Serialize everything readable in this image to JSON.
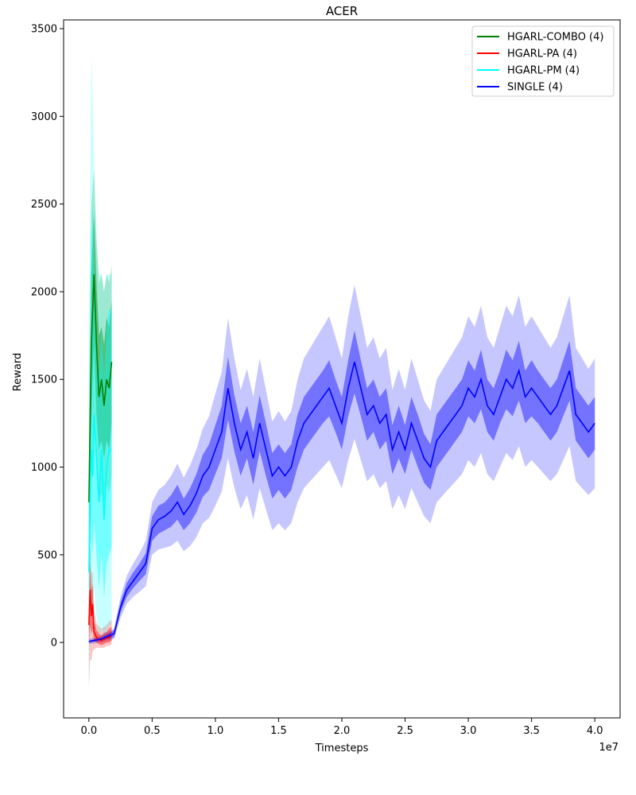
{
  "chart_data": {
    "type": "line",
    "title": "ACER",
    "xlabel": "Timesteps",
    "ylabel": "Reward",
    "x_offset_text": "1e7",
    "xlim": [
      -0.2,
      4.2
    ],
    "ylim": [
      -430,
      3550
    ],
    "x_ticks": [
      0.0,
      0.5,
      1.0,
      1.5,
      2.0,
      2.5,
      3.0,
      3.5,
      4.0
    ],
    "x_tick_labels": [
      "0.0",
      "0.5",
      "1.0",
      "1.5",
      "2.0",
      "2.5",
      "3.0",
      "3.5",
      "4.0"
    ],
    "y_ticks": [
      0,
      500,
      1000,
      1500,
      2000,
      2500,
      3000,
      3500
    ],
    "y_tick_labels": [
      "0",
      "500",
      "1000",
      "1500",
      "2000",
      "2500",
      "3000",
      "3500"
    ],
    "grid": false,
    "legend_position": "top-right",
    "series": [
      {
        "name": "HGARL-COMBO (4)",
        "color": "#008000",
        "x": [
          0.0,
          0.02,
          0.04,
          0.06,
          0.08,
          0.1,
          0.12,
          0.14,
          0.16,
          0.18
        ],
        "y": [
          800,
          1700,
          2100,
          1700,
          1400,
          1500,
          1350,
          1500,
          1450,
          1600
        ],
        "band_inner": [
          [
            600,
            1000
          ],
          [
            1300,
            2100
          ],
          [
            1700,
            2450
          ],
          [
            1300,
            2050
          ],
          [
            1100,
            1750
          ],
          [
            1150,
            1800
          ],
          [
            1050,
            1700
          ],
          [
            1150,
            1850
          ],
          [
            1100,
            1800
          ],
          [
            1250,
            1950
          ]
        ],
        "band_outer": [
          [
            300,
            1300
          ],
          [
            900,
            2500
          ],
          [
            1300,
            2700
          ],
          [
            1000,
            2300
          ],
          [
            800,
            2050
          ],
          [
            850,
            2100
          ],
          [
            800,
            2000
          ],
          [
            900,
            2100
          ],
          [
            850,
            2050
          ],
          [
            950,
            2150
          ]
        ]
      },
      {
        "name": "HGARL-PA (4)",
        "color": "#ff0000",
        "x": [
          0.0,
          0.01,
          0.02,
          0.03,
          0.04,
          0.06,
          0.08,
          0.1,
          0.12,
          0.14,
          0.16,
          0.18
        ],
        "y": [
          100,
          300,
          150,
          220,
          60,
          30,
          15,
          10,
          20,
          25,
          30,
          40
        ],
        "band_inner": [
          [
            0,
            250
          ],
          [
            100,
            450
          ],
          [
            50,
            300
          ],
          [
            80,
            330
          ],
          [
            10,
            120
          ],
          [
            0,
            70
          ],
          [
            -10,
            50
          ],
          [
            -15,
            40
          ],
          [
            -10,
            55
          ],
          [
            0,
            60
          ],
          [
            0,
            80
          ],
          [
            10,
            90
          ]
        ],
        "band_outer": [
          [
            -250,
            450
          ],
          [
            -100,
            550
          ],
          [
            -100,
            400
          ],
          [
            -50,
            400
          ],
          [
            -40,
            180
          ],
          [
            -30,
            110
          ],
          [
            -30,
            90
          ],
          [
            -30,
            80
          ],
          [
            -30,
            90
          ],
          [
            -20,
            100
          ],
          [
            -20,
            120
          ],
          [
            -10,
            130
          ]
        ]
      },
      {
        "name": "HGARL-PM (4)",
        "color": "#00ffff",
        "x": [
          0.0,
          0.01,
          0.02,
          0.03,
          0.04,
          0.06,
          0.08,
          0.1,
          0.12,
          0.14,
          0.16,
          0.18
        ],
        "y": [
          400,
          800,
          1100,
          950,
          1300,
          1050,
          800,
          1100,
          700,
          1000,
          1100,
          1100
        ],
        "band_inner": [
          [
            100,
            900
          ],
          [
            400,
            1600
          ],
          [
            600,
            2300
          ],
          [
            500,
            2500
          ],
          [
            700,
            2200
          ],
          [
            500,
            1700
          ],
          [
            300,
            1500
          ],
          [
            500,
            1800
          ],
          [
            250,
            1500
          ],
          [
            450,
            1800
          ],
          [
            500,
            1900
          ],
          [
            550,
            1900
          ]
        ],
        "band_outer": [
          [
            -250,
            1600
          ],
          [
            0,
            2600
          ],
          [
            200,
            3350
          ],
          [
            150,
            3100
          ],
          [
            300,
            2700
          ],
          [
            150,
            2300
          ],
          [
            0,
            2100
          ],
          [
            100,
            2100
          ],
          [
            0,
            2000
          ],
          [
            50,
            2100
          ],
          [
            100,
            2100
          ],
          [
            100,
            2100
          ]
        ]
      },
      {
        "name": "SINGLE (4)",
        "color": "#0000ff",
        "x": [
          0.0,
          0.1,
          0.2,
          0.25,
          0.3,
          0.35,
          0.4,
          0.45,
          0.5,
          0.55,
          0.6,
          0.65,
          0.7,
          0.75,
          0.8,
          0.85,
          0.9,
          0.95,
          1.0,
          1.05,
          1.1,
          1.15,
          1.2,
          1.25,
          1.3,
          1.35,
          1.4,
          1.45,
          1.5,
          1.55,
          1.6,
          1.65,
          1.7,
          1.75,
          1.8,
          1.85,
          1.9,
          1.95,
          2.0,
          2.05,
          2.1,
          2.15,
          2.2,
          2.25,
          2.3,
          2.35,
          2.4,
          2.45,
          2.5,
          2.55,
          2.6,
          2.65,
          2.7,
          2.75,
          2.8,
          2.85,
          2.9,
          2.95,
          3.0,
          3.05,
          3.1,
          3.15,
          3.2,
          3.25,
          3.3,
          3.35,
          3.4,
          3.45,
          3.5,
          3.55,
          3.6,
          3.65,
          3.7,
          3.75,
          3.8,
          3.85,
          3.9,
          3.95,
          4.0
        ],
        "y": [
          5,
          20,
          50,
          200,
          300,
          350,
          400,
          450,
          650,
          700,
          720,
          750,
          800,
          730,
          780,
          850,
          950,
          1000,
          1100,
          1200,
          1450,
          1250,
          1100,
          1200,
          1050,
          1250,
          1100,
          950,
          1000,
          950,
          1000,
          1150,
          1250,
          1300,
          1350,
          1400,
          1450,
          1350,
          1250,
          1450,
          1600,
          1450,
          1300,
          1350,
          1250,
          1300,
          1100,
          1200,
          1100,
          1250,
          1150,
          1050,
          1000,
          1150,
          1200,
          1250,
          1300,
          1350,
          1450,
          1400,
          1500,
          1350,
          1300,
          1400,
          1500,
          1450,
          1550,
          1400,
          1450,
          1400,
          1350,
          1300,
          1350,
          1450,
          1550,
          1300,
          1250,
          1200,
          1250
        ],
        "band_inner": [
          [
            0,
            10
          ],
          [
            10,
            30
          ],
          [
            30,
            70
          ],
          [
            170,
            230
          ],
          [
            260,
            340
          ],
          [
            310,
            400
          ],
          [
            350,
            450
          ],
          [
            390,
            510
          ],
          [
            580,
            720
          ],
          [
            620,
            780
          ],
          [
            640,
            800
          ],
          [
            660,
            840
          ],
          [
            700,
            900
          ],
          [
            640,
            820
          ],
          [
            680,
            880
          ],
          [
            740,
            960
          ],
          [
            830,
            1070
          ],
          [
            870,
            1130
          ],
          [
            960,
            1240
          ],
          [
            1050,
            1350
          ],
          [
            1270,
            1630
          ],
          [
            1090,
            1410
          ],
          [
            950,
            1250
          ],
          [
            1050,
            1350
          ],
          [
            900,
            1200
          ],
          [
            1090,
            1410
          ],
          [
            950,
            1250
          ],
          [
            820,
            1080
          ],
          [
            870,
            1130
          ],
          [
            820,
            1080
          ],
          [
            870,
            1130
          ],
          [
            1000,
            1300
          ],
          [
            1100,
            1400
          ],
          [
            1150,
            1450
          ],
          [
            1200,
            1500
          ],
          [
            1250,
            1550
          ],
          [
            1290,
            1610
          ],
          [
            1200,
            1500
          ],
          [
            1100,
            1400
          ],
          [
            1290,
            1610
          ],
          [
            1420,
            1780
          ],
          [
            1290,
            1610
          ],
          [
            1150,
            1450
          ],
          [
            1200,
            1500
          ],
          [
            1100,
            1400
          ],
          [
            1150,
            1450
          ],
          [
            960,
            1240
          ],
          [
            1050,
            1350
          ],
          [
            960,
            1240
          ],
          [
            1100,
            1400
          ],
          [
            1000,
            1300
          ],
          [
            910,
            1190
          ],
          [
            870,
            1130
          ],
          [
            1000,
            1300
          ],
          [
            1050,
            1350
          ],
          [
            1100,
            1400
          ],
          [
            1150,
            1450
          ],
          [
            1200,
            1500
          ],
          [
            1290,
            1610
          ],
          [
            1250,
            1550
          ],
          [
            1330,
            1670
          ],
          [
            1200,
            1500
          ],
          [
            1150,
            1450
          ],
          [
            1250,
            1550
          ],
          [
            1330,
            1670
          ],
          [
            1290,
            1610
          ],
          [
            1380,
            1720
          ],
          [
            1250,
            1550
          ],
          [
            1290,
            1610
          ],
          [
            1250,
            1550
          ],
          [
            1200,
            1500
          ],
          [
            1150,
            1450
          ],
          [
            1200,
            1500
          ],
          [
            1290,
            1610
          ],
          [
            1380,
            1720
          ],
          [
            1150,
            1450
          ],
          [
            1100,
            1400
          ],
          [
            1050,
            1350
          ],
          [
            1100,
            1400
          ]
        ],
        "band_outer": [
          [
            -10,
            20
          ],
          [
            0,
            40
          ],
          [
            20,
            80
          ],
          [
            140,
            260
          ],
          [
            220,
            380
          ],
          [
            260,
            450
          ],
          [
            290,
            510
          ],
          [
            320,
            580
          ],
          [
            500,
            800
          ],
          [
            530,
            870
          ],
          [
            540,
            900
          ],
          [
            550,
            950
          ],
          [
            580,
            1020
          ],
          [
            520,
            940
          ],
          [
            550,
            1010
          ],
          [
            600,
            1100
          ],
          [
            680,
            1220
          ],
          [
            710,
            1290
          ],
          [
            780,
            1420
          ],
          [
            860,
            1540
          ],
          [
            1050,
            1850
          ],
          [
            880,
            1620
          ],
          [
            760,
            1440
          ],
          [
            840,
            1560
          ],
          [
            700,
            1400
          ],
          [
            880,
            1620
          ],
          [
            760,
            1440
          ],
          [
            640,
            1260
          ],
          [
            680,
            1320
          ],
          [
            640,
            1260
          ],
          [
            680,
            1320
          ],
          [
            800,
            1500
          ],
          [
            880,
            1620
          ],
          [
            920,
            1680
          ],
          [
            960,
            1740
          ],
          [
            1000,
            1800
          ],
          [
            1040,
            1860
          ],
          [
            960,
            1740
          ],
          [
            880,
            1620
          ],
          [
            1040,
            1860
          ],
          [
            1160,
            2040
          ],
          [
            1040,
            1860
          ],
          [
            920,
            1680
          ],
          [
            960,
            1740
          ],
          [
            880,
            1620
          ],
          [
            920,
            1680
          ],
          [
            760,
            1440
          ],
          [
            840,
            1560
          ],
          [
            760,
            1440
          ],
          [
            880,
            1620
          ],
          [
            800,
            1500
          ],
          [
            720,
            1380
          ],
          [
            680,
            1320
          ],
          [
            800,
            1500
          ],
          [
            840,
            1560
          ],
          [
            880,
            1620
          ],
          [
            920,
            1680
          ],
          [
            960,
            1740
          ],
          [
            1040,
            1860
          ],
          [
            1000,
            1800
          ],
          [
            1080,
            1920
          ],
          [
            960,
            1740
          ],
          [
            920,
            1680
          ],
          [
            1000,
            1800
          ],
          [
            1080,
            1920
          ],
          [
            1040,
            1860
          ],
          [
            1120,
            1980
          ],
          [
            1000,
            1800
          ],
          [
            1040,
            1860
          ],
          [
            1000,
            1800
          ],
          [
            960,
            1740
          ],
          [
            920,
            1680
          ],
          [
            960,
            1740
          ],
          [
            1040,
            1860
          ],
          [
            1120,
            1980
          ],
          [
            920,
            1680
          ],
          [
            880,
            1620
          ],
          [
            840,
            1560
          ],
          [
            880,
            1620
          ]
        ]
      }
    ]
  }
}
